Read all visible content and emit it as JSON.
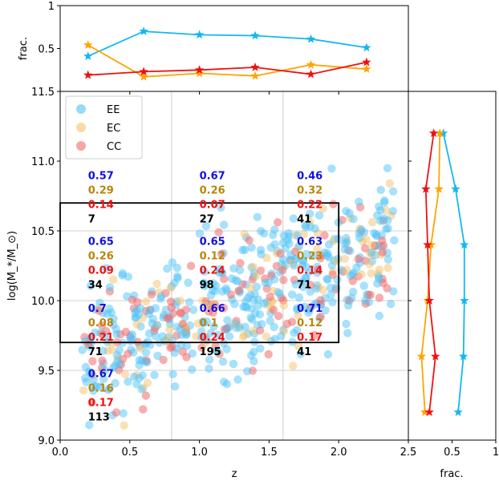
{
  "chart_data": [
    {
      "panel": "main-scatter",
      "type": "scatter",
      "xlabel": "z",
      "ylabel": "log(M_*/M_⊙)",
      "xlim": [
        0.0,
        2.5
      ],
      "ylim": [
        9.0,
        11.5
      ],
      "x_ticks": [
        "0.0",
        "0.5",
        "1.0",
        "1.5",
        "2.0",
        "2.5"
      ],
      "y_ticks": [
        "9.0",
        "9.5",
        "10.0",
        "10.5",
        "11.0",
        "11.5"
      ],
      "grid_x_values": [
        0.8,
        1.6
      ],
      "grid_y_values": [
        9.5,
        10.0,
        10.5
      ],
      "legend": {
        "placement": "top-left",
        "entries": [
          {
            "label": "EE",
            "color": "#4fc3f7"
          },
          {
            "label": "EC",
            "color": "#f5c26b"
          },
          {
            "label": "CC",
            "color": "#f06b6b"
          }
        ]
      },
      "box": {
        "x": [
          0.0,
          2.0
        ],
        "y": [
          9.7,
          10.7
        ]
      },
      "cell_annotations": [
        {
          "x": 0.2,
          "y": 10.87,
          "ee": "0.57",
          "ec": "0.29",
          "cc": "0.14",
          "n": "7"
        },
        {
          "x": 1.0,
          "y": 10.87,
          "ee": "0.67",
          "ec": "0.26",
          "cc": "0.07",
          "n": "27"
        },
        {
          "x": 1.7,
          "y": 10.87,
          "ee": "0.46",
          "ec": "0.32",
          "cc": "0.22",
          "n": "41"
        },
        {
          "x": 0.2,
          "y": 10.4,
          "ee": "0.65",
          "ec": "0.26",
          "cc": "0.09",
          "n": "34"
        },
        {
          "x": 1.0,
          "y": 10.4,
          "ee": "0.65",
          "ec": "0.12",
          "cc": "0.24",
          "n": "98"
        },
        {
          "x": 1.7,
          "y": 10.4,
          "ee": "0.63",
          "ec": "0.23",
          "cc": "0.14",
          "n": "71"
        },
        {
          "x": 0.2,
          "y": 9.92,
          "ee": "0.7",
          "ec": "0.08",
          "cc": "0.21",
          "n": "71"
        },
        {
          "x": 1.0,
          "y": 9.92,
          "ee": "0.66",
          "ec": "0.1",
          "cc": "0.24",
          "n": "195"
        },
        {
          "x": 1.7,
          "y": 9.92,
          "ee": "0.71",
          "ec": "0.12",
          "cc": "0.17",
          "n": "41"
        },
        {
          "x": 0.2,
          "y": 9.45,
          "ee": "0.67",
          "ec": "0.16",
          "cc": "0.17",
          "n": "113"
        }
      ],
      "annotation_colors": {
        "ee": "#1010e0",
        "ec": "#b8860b",
        "cc": "#ee1111",
        "n": "#000000"
      },
      "scatter_note": "approx. 600 points with z in 0.1-2.4 and log mass in 9.05-11.25; representative generated distribution"
    },
    {
      "panel": "top-fraction",
      "type": "line",
      "ylabel": "frac.",
      "xlim": [
        0.0,
        2.5
      ],
      "ylim": [
        0.0,
        1.0
      ],
      "y_ticks": [
        "0.5",
        "1"
      ],
      "x": [
        0.2,
        0.6,
        1.0,
        1.4,
        1.8,
        2.2
      ],
      "series": [
        {
          "key": "ee",
          "color": "#12b8f0",
          "values": [
            0.41,
            0.7,
            0.66,
            0.65,
            0.61,
            0.51
          ]
        },
        {
          "key": "ec",
          "color": "#ffa500",
          "values": [
            0.54,
            0.17,
            0.21,
            0.18,
            0.31,
            0.26
          ]
        },
        {
          "key": "cc",
          "color": "#ee1111",
          "values": [
            0.19,
            0.23,
            0.25,
            0.28,
            0.2,
            0.34
          ]
        }
      ]
    },
    {
      "panel": "right-fraction",
      "type": "line",
      "xlabel": "frac.",
      "xlim": [
        0.0,
        1.0
      ],
      "ylim": [
        9.0,
        11.5
      ],
      "x_ticks": [
        "0.5",
        "1"
      ],
      "y": [
        9.2,
        9.6,
        10.0,
        10.4,
        10.8,
        11.2
      ],
      "series": [
        {
          "key": "ee",
          "color": "#12b8f0",
          "values": [
            0.57,
            0.63,
            0.64,
            0.64,
            0.54,
            0.4
          ]
        },
        {
          "key": "ec",
          "color": "#ffa500",
          "values": [
            0.19,
            0.15,
            0.22,
            0.26,
            0.35,
            0.36
          ]
        },
        {
          "key": "cc",
          "color": "#ee1111",
          "values": [
            0.24,
            0.31,
            0.24,
            0.22,
            0.2,
            0.29
          ]
        }
      ]
    }
  ]
}
